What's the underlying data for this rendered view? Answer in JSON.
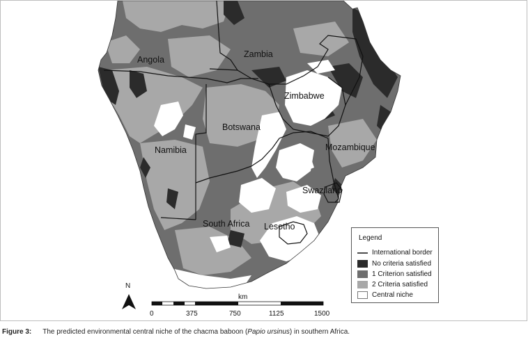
{
  "countries": [
    {
      "name": "Angola"
    },
    {
      "name": "Zambia"
    },
    {
      "name": "Zimbabwe"
    },
    {
      "name": "Botswana"
    },
    {
      "name": "Namibia"
    },
    {
      "name": "Mozambique"
    },
    {
      "name": "Swaziland"
    },
    {
      "name": "South Africa"
    },
    {
      "name": "Lesotho"
    }
  ],
  "legend": {
    "title": "Legend",
    "items": [
      {
        "label": "International border",
        "swatch": "line",
        "color": "#111111"
      },
      {
        "label": "No criteria satisfied",
        "swatch": "box",
        "color": "#2b2b2b"
      },
      {
        "label": "1 Criterion satisfied",
        "swatch": "box",
        "color": "#6e6e6e"
      },
      {
        "label": "2 Criteria satisfied",
        "swatch": "box",
        "color": "#a8a8a8"
      },
      {
        "label": "Central niche",
        "swatch": "box",
        "color": "#ffffff"
      }
    ]
  },
  "north_arrow": {
    "label": "N"
  },
  "scale": {
    "unit": "km",
    "ticks": [
      "0",
      "375",
      "750",
      "1125",
      "1500"
    ]
  },
  "caption": {
    "figure": "Figure 3:",
    "text_before": "The predicted environmental central niche of the chacma baboon (",
    "species": "Papio ursinus",
    "text_after": ") in southern Africa."
  },
  "colors": {
    "no_criteria": "#2b2b2b",
    "one_criterion": "#6e6e6e",
    "two_criteria": "#a8a8a8",
    "central_niche": "#ffffff",
    "sea": "#ffffff"
  }
}
